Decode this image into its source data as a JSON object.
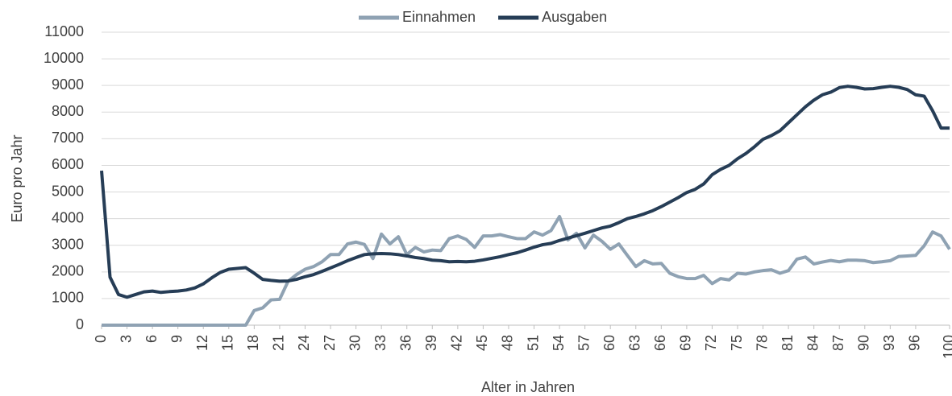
{
  "chart_data": {
    "type": "line",
    "x_label": "Alter in Jahren",
    "y_label": "Euro pro Jahr",
    "x": [
      0,
      1,
      2,
      3,
      4,
      5,
      6,
      7,
      8,
      9,
      10,
      11,
      12,
      13,
      14,
      15,
      16,
      17,
      18,
      19,
      20,
      21,
      22,
      23,
      24,
      25,
      26,
      27,
      28,
      29,
      30,
      31,
      32,
      33,
      34,
      35,
      36,
      37,
      38,
      39,
      40,
      41,
      42,
      43,
      44,
      45,
      46,
      47,
      48,
      49,
      50,
      51,
      52,
      53,
      54,
      55,
      56,
      57,
      58,
      59,
      60,
      61,
      62,
      63,
      64,
      65,
      66,
      67,
      68,
      69,
      70,
      71,
      72,
      73,
      74,
      75,
      76,
      77,
      78,
      79,
      80,
      81,
      82,
      83,
      84,
      85,
      86,
      87,
      88,
      89,
      90,
      91,
      92,
      93,
      94,
      95,
      96,
      97,
      98,
      99,
      100
    ],
    "series": [
      {
        "name": "Einnahmen",
        "color": "#8fa2b3",
        "values": [
          0,
          0,
          0,
          0,
          0,
          0,
          0,
          0,
          0,
          0,
          0,
          0,
          0,
          0,
          0,
          0,
          0,
          0,
          550,
          650,
          950,
          970,
          1650,
          1900,
          2100,
          2200,
          2380,
          2650,
          2650,
          3050,
          3120,
          3030,
          2500,
          3420,
          3050,
          3320,
          2650,
          2920,
          2750,
          2820,
          2800,
          3250,
          3350,
          3220,
          2920,
          3350,
          3350,
          3400,
          3320,
          3250,
          3250,
          3500,
          3380,
          3550,
          4080,
          3200,
          3450,
          2900,
          3380,
          3150,
          2850,
          3050,
          2620,
          2200,
          2420,
          2300,
          2320,
          1950,
          1820,
          1750,
          1750,
          1870,
          1560,
          1750,
          1700,
          1950,
          1920,
          2000,
          2050,
          2080,
          1950,
          2050,
          2480,
          2560,
          2300,
          2370,
          2430,
          2380,
          2440,
          2440,
          2420,
          2350,
          2380,
          2420,
          2580,
          2600,
          2620,
          2980,
          3500,
          3350,
          2850
        ]
      },
      {
        "name": "Ausgaben",
        "color": "#263d56",
        "values": [
          5800,
          1800,
          1150,
          1050,
          1150,
          1250,
          1280,
          1230,
          1260,
          1280,
          1320,
          1400,
          1550,
          1780,
          1980,
          2100,
          2130,
          2160,
          1950,
          1720,
          1680,
          1650,
          1660,
          1720,
          1820,
          1900,
          2020,
          2150,
          2280,
          2420,
          2540,
          2650,
          2680,
          2690,
          2680,
          2650,
          2600,
          2540,
          2500,
          2440,
          2420,
          2380,
          2390,
          2380,
          2400,
          2450,
          2510,
          2570,
          2650,
          2720,
          2820,
          2930,
          3020,
          3070,
          3180,
          3270,
          3360,
          3450,
          3550,
          3650,
          3720,
          3850,
          4000,
          4080,
          4180,
          4300,
          4450,
          4620,
          4790,
          4980,
          5100,
          5300,
          5650,
          5850,
          6000,
          6250,
          6450,
          6700,
          6980,
          7120,
          7300,
          7600,
          7900,
          8200,
          8450,
          8650,
          8750,
          8920,
          8970,
          8930,
          8870,
          8880,
          8930,
          8970,
          8930,
          8850,
          8650,
          8600,
          8050,
          7400,
          7400
        ]
      }
    ],
    "xlim": [
      0,
      100
    ],
    "xticks": [
      0,
      3,
      6,
      9,
      12,
      15,
      18,
      21,
      24,
      27,
      30,
      33,
      36,
      39,
      42,
      45,
      48,
      51,
      54,
      57,
      60,
      63,
      66,
      69,
      72,
      75,
      78,
      81,
      84,
      87,
      90,
      93,
      96,
      100
    ],
    "ylim": [
      0,
      11000
    ],
    "yticks": [
      0,
      1000,
      2000,
      3000,
      4000,
      5000,
      6000,
      7000,
      8000,
      9000,
      10000,
      11000
    ],
    "grid": true,
    "legend": "top"
  }
}
